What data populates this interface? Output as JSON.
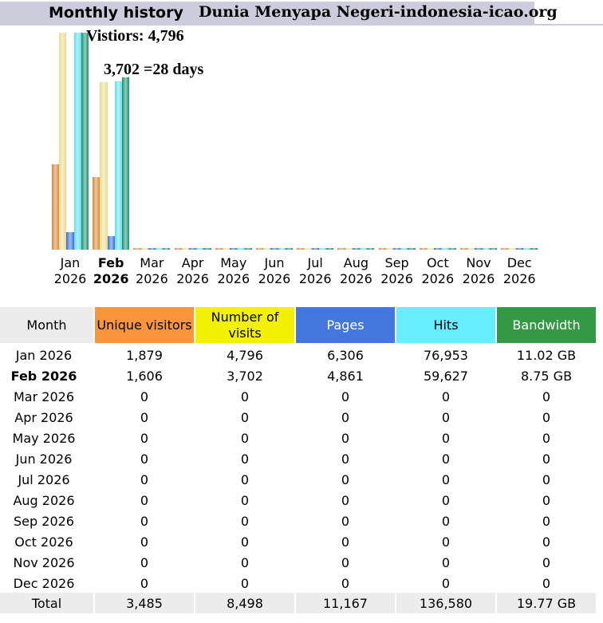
{
  "header": {
    "title": "Monthly history",
    "site": "Dunia Menyapa Negeri-indonesia-icao.org"
  },
  "annotations": [
    "Vistiors: 4,796",
    "3,702 =28 days"
  ],
  "chart_data": {
    "type": "bar",
    "categories": [
      "Jan 2026",
      "Feb 2026",
      "Mar 2026",
      "Apr 2026",
      "May 2026",
      "Jun 2026",
      "Jul 2026",
      "Aug 2026",
      "Sep 2026",
      "Oct 2026",
      "Nov 2026",
      "Dec 2026"
    ],
    "current": 1,
    "series": [
      {
        "name": "Unique visitors",
        "color": "#d98a36",
        "header_color": "#f9963c",
        "values": [
          1879,
          1606,
          0,
          0,
          0,
          0,
          0,
          0,
          0,
          0,
          0,
          0
        ],
        "value_labels": [
          "1,879",
          "1,606",
          "0",
          "0",
          "0",
          "0",
          "0",
          "0",
          "0",
          "0",
          "0",
          "0"
        ]
      },
      {
        "name": "Number of visits",
        "color": "#e8dc8c",
        "header_color": "#f2f200",
        "values": [
          4796,
          3702,
          0,
          0,
          0,
          0,
          0,
          0,
          0,
          0,
          0,
          0
        ],
        "value_labels": [
          "4,796",
          "3,702",
          "0",
          "0",
          "0",
          "0",
          "0",
          "0",
          "0",
          "0",
          "0",
          "0"
        ]
      },
      {
        "name": "Pages",
        "color": "#3a6fd8",
        "header_color": "#4477dd",
        "values": [
          6306,
          4861,
          0,
          0,
          0,
          0,
          0,
          0,
          0,
          0,
          0,
          0
        ],
        "value_labels": [
          "6,306",
          "4,861",
          "0",
          "0",
          "0",
          "0",
          "0",
          "0",
          "0",
          "0",
          "0",
          "0"
        ]
      },
      {
        "name": "Hits",
        "color": "#5ee0e8",
        "header_color": "#66eeff",
        "values": [
          76953,
          59627,
          0,
          0,
          0,
          0,
          0,
          0,
          0,
          0,
          0,
          0
        ],
        "value_labels": [
          "76,953",
          "59,627",
          "0",
          "0",
          "0",
          "0",
          "0",
          "0",
          "0",
          "0",
          "0",
          "0"
        ]
      },
      {
        "name": "Bandwidth",
        "color": "#1a9070",
        "header_color": "#339944",
        "values": [
          11.02,
          8.75,
          0,
          0,
          0,
          0,
          0,
          0,
          0,
          0,
          0,
          0
        ],
        "value_labels": [
          "11.02 GB",
          "8.75 GB",
          "0",
          "0",
          "0",
          "0",
          "0",
          "0",
          "0",
          "0",
          "0",
          "0"
        ]
      }
    ]
  },
  "table": {
    "month_header": "Month",
    "total_label": "Total",
    "totals": [
      "3,485",
      "8,498",
      "11,167",
      "136,580",
      "19.77 GB"
    ]
  }
}
